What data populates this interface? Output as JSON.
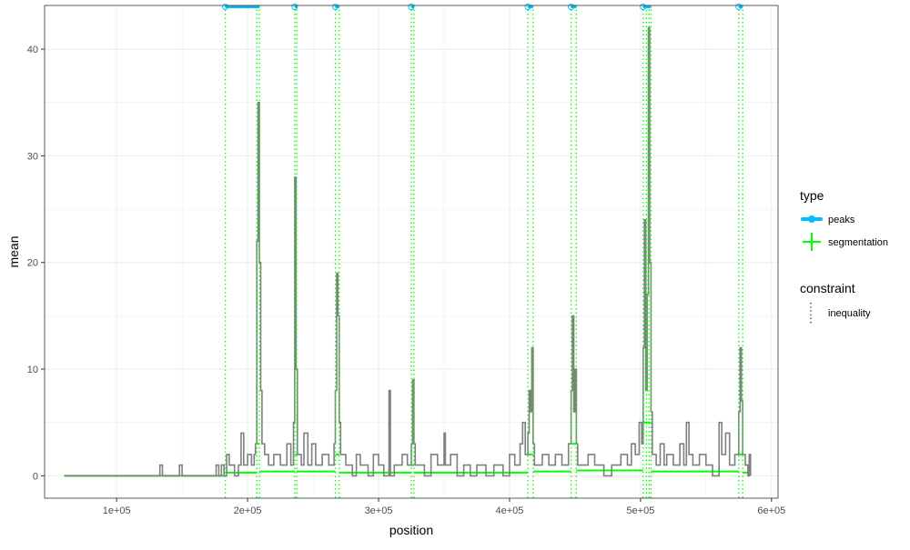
{
  "chart_data": {
    "type": "line",
    "xlabel": "position",
    "ylabel": "mean",
    "xlim": [
      45000,
      605000
    ],
    "ylim": [
      -2.1,
      44.1
    ],
    "x_ticks": [
      100000,
      200000,
      300000,
      400000,
      500000,
      600000
    ],
    "x_tick_labels": [
      "1e+05",
      "2e+05",
      "3e+05",
      "4e+05",
      "5e+05",
      "6e+05"
    ],
    "y_ticks": [
      0,
      10,
      20,
      30,
      40
    ],
    "y_tick_labels": [
      "0",
      "10",
      "20",
      "30",
      "40"
    ],
    "grid": true,
    "legend_position": "right",
    "colors": {
      "signal": "#808080",
      "peaks": "#00bfff",
      "segmentation": "#00ff00",
      "grid": "#ebebeb",
      "panel_border": "#333333"
    },
    "legend": {
      "type": {
        "title": "type",
        "items": [
          {
            "label": "peaks",
            "color": "#00bfff"
          },
          {
            "label": "segmentation",
            "color": "#00ff00"
          }
        ]
      },
      "constraint": {
        "title": "constraint",
        "items": [
          {
            "label": "inequality",
            "linetype": "dotted"
          }
        ]
      }
    },
    "series": [
      {
        "name": "signal",
        "color": "#808080",
        "points": [
          [
            60000,
            0
          ],
          [
            130000,
            0
          ],
          [
            133000,
            1
          ],
          [
            135000,
            0
          ],
          [
            147000,
            0
          ],
          [
            148000,
            1
          ],
          [
            150000,
            0
          ],
          [
            175000,
            0
          ],
          [
            176000,
            1
          ],
          [
            178000,
            0
          ],
          [
            180000,
            1
          ],
          [
            182000,
            0
          ],
          [
            184000,
            2
          ],
          [
            186000,
            1
          ],
          [
            190000,
            0
          ],
          [
            193000,
            1
          ],
          [
            195000,
            4
          ],
          [
            197000,
            1
          ],
          [
            200000,
            2
          ],
          [
            203000,
            1
          ],
          [
            205000,
            2
          ],
          [
            206000,
            3
          ],
          [
            207000,
            22
          ],
          [
            208000,
            35
          ],
          [
            209000,
            20
          ],
          [
            210000,
            8
          ],
          [
            211000,
            3
          ],
          [
            213000,
            2
          ],
          [
            216000,
            1
          ],
          [
            220000,
            2
          ],
          [
            225000,
            1
          ],
          [
            230000,
            3
          ],
          [
            233000,
            1
          ],
          [
            235000,
            5
          ],
          [
            236000,
            28
          ],
          [
            237000,
            10
          ],
          [
            238000,
            2
          ],
          [
            241000,
            1
          ],
          [
            243000,
            4
          ],
          [
            246000,
            1
          ],
          [
            249000,
            3
          ],
          [
            252000,
            1
          ],
          [
            257000,
            2
          ],
          [
            262000,
            1
          ],
          [
            266000,
            3
          ],
          [
            267000,
            8
          ],
          [
            268000,
            19
          ],
          [
            269000,
            15
          ],
          [
            270000,
            5
          ],
          [
            271000,
            2
          ],
          [
            275000,
            1
          ],
          [
            280000,
            0
          ],
          [
            283000,
            2
          ],
          [
            286000,
            1
          ],
          [
            292000,
            0
          ],
          [
            296000,
            2
          ],
          [
            300000,
            1
          ],
          [
            304000,
            0
          ],
          [
            308000,
            8
          ],
          [
            309000,
            0
          ],
          [
            312000,
            1
          ],
          [
            318000,
            2
          ],
          [
            322000,
            1
          ],
          [
            325000,
            3
          ],
          [
            326000,
            9
          ],
          [
            327000,
            3
          ],
          [
            328000,
            1
          ],
          [
            335000,
            0
          ],
          [
            340000,
            2
          ],
          [
            345000,
            1
          ],
          [
            350000,
            4
          ],
          [
            351000,
            1
          ],
          [
            355000,
            2
          ],
          [
            360000,
            0
          ],
          [
            365000,
            1
          ],
          [
            370000,
            0
          ],
          [
            375000,
            1
          ],
          [
            382000,
            0
          ],
          [
            388000,
            1
          ],
          [
            395000,
            0
          ],
          [
            400000,
            2
          ],
          [
            404000,
            1
          ],
          [
            408000,
            3
          ],
          [
            410000,
            5
          ],
          [
            412000,
            2
          ],
          [
            414000,
            4
          ],
          [
            415000,
            8
          ],
          [
            416000,
            6
          ],
          [
            417000,
            12
          ],
          [
            418000,
            3
          ],
          [
            419000,
            1
          ],
          [
            425000,
            2
          ],
          [
            430000,
            1
          ],
          [
            435000,
            2
          ],
          [
            440000,
            1
          ],
          [
            445000,
            3
          ],
          [
            447000,
            8
          ],
          [
            448000,
            15
          ],
          [
            449000,
            6
          ],
          [
            450000,
            10
          ],
          [
            451000,
            3
          ],
          [
            452000,
            1
          ],
          [
            460000,
            2
          ],
          [
            465000,
            1
          ],
          [
            472000,
            0
          ],
          [
            478000,
            1
          ],
          [
            485000,
            2
          ],
          [
            490000,
            1
          ],
          [
            493000,
            3
          ],
          [
            496000,
            2
          ],
          [
            499000,
            5
          ],
          [
            501000,
            3
          ],
          [
            502000,
            12
          ],
          [
            503000,
            24
          ],
          [
            504000,
            8
          ],
          [
            505000,
            17
          ],
          [
            506000,
            42
          ],
          [
            507000,
            20
          ],
          [
            508000,
            6
          ],
          [
            509000,
            2
          ],
          [
            512000,
            1
          ],
          [
            515000,
            3
          ],
          [
            518000,
            1
          ],
          [
            520000,
            2
          ],
          [
            525000,
            1
          ],
          [
            530000,
            3
          ],
          [
            533000,
            1
          ],
          [
            535000,
            5
          ],
          [
            537000,
            2
          ],
          [
            540000,
            1
          ],
          [
            545000,
            2
          ],
          [
            550000,
            1
          ],
          [
            555000,
            0
          ],
          [
            560000,
            5
          ],
          [
            562000,
            2
          ],
          [
            565000,
            4
          ],
          [
            568000,
            1
          ],
          [
            572000,
            2
          ],
          [
            575000,
            6
          ],
          [
            576000,
            12
          ],
          [
            577000,
            7
          ],
          [
            578000,
            2
          ],
          [
            580000,
            1
          ],
          [
            582000,
            0
          ],
          [
            583000,
            2
          ],
          [
            584000,
            0
          ]
        ]
      },
      {
        "name": "segmentation",
        "color": "#00ff00",
        "segments": [
          [
            60000,
            183000,
            0
          ],
          [
            183000,
            207000,
            0.3
          ],
          [
            207000,
            209000,
            3
          ],
          [
            209000,
            236000,
            0.4
          ],
          [
            236000,
            237500,
            2
          ],
          [
            237500,
            267000,
            0.4
          ],
          [
            267000,
            270000,
            2
          ],
          [
            270000,
            325000,
            0.3
          ],
          [
            325000,
            327000,
            1
          ],
          [
            327000,
            414000,
            0.3
          ],
          [
            414000,
            418000,
            2
          ],
          [
            418000,
            447000,
            0.4
          ],
          [
            447000,
            451000,
            3
          ],
          [
            451000,
            502000,
            0.5
          ],
          [
            502000,
            508000,
            5
          ],
          [
            508000,
            575000,
            0.4
          ],
          [
            575000,
            578000,
            2
          ],
          [
            578000,
            584000,
            0.3
          ]
        ]
      }
    ],
    "peaks": [
      [
        183000,
        209000
      ],
      [
        236000,
        237500
      ],
      [
        267000,
        270000
      ],
      [
        325000,
        327000
      ],
      [
        414000,
        418000
      ],
      [
        447000,
        451000
      ],
      [
        502000,
        508000
      ],
      [
        575000,
        578000
      ]
    ],
    "changepoints": [
      183000,
      207000,
      209000,
      236000,
      237500,
      267000,
      270000,
      325000,
      327000,
      414000,
      418000,
      447000,
      451000,
      502000,
      504500,
      506500,
      508000,
      575000,
      578000
    ]
  }
}
